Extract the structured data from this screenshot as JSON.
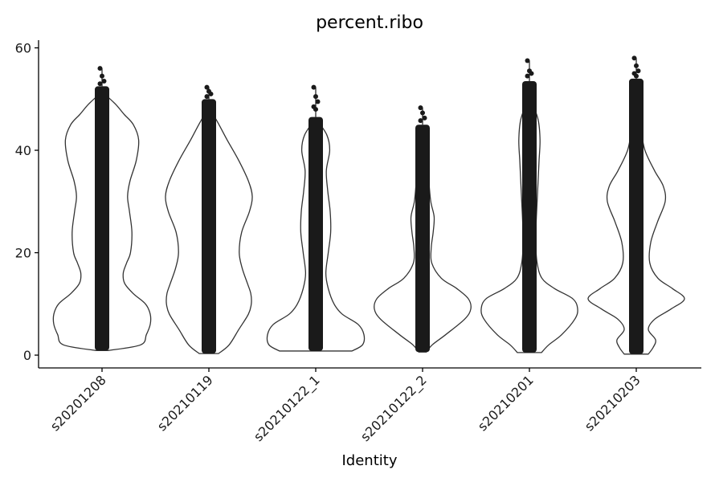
{
  "chart_data": {
    "type": "violin",
    "title": "percent.ribo",
    "xlabel": "Identity",
    "ylabel": "",
    "ylim": [
      -2.5,
      61.5
    ],
    "yticks": [
      0,
      20,
      40,
      60
    ],
    "grid": false,
    "legend": "none",
    "categories": [
      "s20201208",
      "s20210119",
      "s20210122_1",
      "s20210122_2",
      "s20210201",
      "s20210203"
    ],
    "violin_color": "#ffffff",
    "outline_color": "#333333",
    "point_color": "#1a1a1a",
    "violins": [
      {
        "name": "s20201208",
        "min": 0.9,
        "max": 51,
        "density": [
          [
            0.9,
            0.13
          ],
          [
            2,
            0.8
          ],
          [
            4,
            0.92
          ],
          [
            6,
            1.0
          ],
          [
            8,
            1.0
          ],
          [
            10,
            0.9
          ],
          [
            12,
            0.65
          ],
          [
            14,
            0.47
          ],
          [
            16,
            0.44
          ],
          [
            18,
            0.51
          ],
          [
            20,
            0.59
          ],
          [
            24,
            0.62
          ],
          [
            28,
            0.57
          ],
          [
            31,
            0.53
          ],
          [
            34,
            0.58
          ],
          [
            38,
            0.71
          ],
          [
            42,
            0.76
          ],
          [
            45,
            0.65
          ],
          [
            47,
            0.46
          ],
          [
            49,
            0.28
          ],
          [
            51,
            0.05
          ]
        ],
        "points": {
          "y_min": 0.9,
          "y_max": 52.5
        },
        "outliers": [
          56,
          54.5,
          53.5,
          53
        ]
      },
      {
        "name": "s20210119",
        "min": 0.3,
        "max": 48,
        "density": [
          [
            0.3,
            0.2
          ],
          [
            2,
            0.42
          ],
          [
            5,
            0.62
          ],
          [
            8,
            0.82
          ],
          [
            10,
            0.88
          ],
          [
            12,
            0.87
          ],
          [
            14,
            0.8
          ],
          [
            17,
            0.69
          ],
          [
            20,
            0.63
          ],
          [
            24,
            0.68
          ],
          [
            28,
            0.84
          ],
          [
            31,
            0.9
          ],
          [
            34,
            0.82
          ],
          [
            38,
            0.62
          ],
          [
            42,
            0.38
          ],
          [
            45,
            0.21
          ],
          [
            48,
            0.03
          ]
        ],
        "points": {
          "y_min": 0.3,
          "y_max": 50
        },
        "outliers": [
          52.3,
          51.5,
          51,
          50.5
        ]
      },
      {
        "name": "s20210122_1",
        "min": 0.8,
        "max": 46,
        "density": [
          [
            0.8,
            0.75
          ],
          [
            2,
            0.97
          ],
          [
            4,
            1.0
          ],
          [
            6,
            0.88
          ],
          [
            8,
            0.55
          ],
          [
            10,
            0.38
          ],
          [
            13,
            0.26
          ],
          [
            16,
            0.21
          ],
          [
            20,
            0.26
          ],
          [
            24,
            0.31
          ],
          [
            28,
            0.3
          ],
          [
            32,
            0.25
          ],
          [
            36,
            0.22
          ],
          [
            40,
            0.29
          ],
          [
            43,
            0.23
          ],
          [
            46,
            0.02
          ]
        ],
        "points": {
          "y_min": 0.8,
          "y_max": 46.5
        },
        "outliers": [
          52.3,
          50.5,
          49.5,
          48.5,
          48
        ]
      },
      {
        "name": "s20210122_2",
        "min": 0.6,
        "max": 42,
        "density": [
          [
            0.6,
            0.08
          ],
          [
            2,
            0.2
          ],
          [
            4,
            0.48
          ],
          [
            7,
            0.87
          ],
          [
            9,
            1.0
          ],
          [
            11,
            0.95
          ],
          [
            13,
            0.71
          ],
          [
            15,
            0.39
          ],
          [
            18,
            0.19
          ],
          [
            21,
            0.18
          ],
          [
            24,
            0.22
          ],
          [
            27,
            0.24
          ],
          [
            30,
            0.17
          ],
          [
            34,
            0.13
          ],
          [
            38,
            0.1
          ],
          [
            42,
            0.02
          ]
        ],
        "points": {
          "y_min": 0.6,
          "y_max": 45
        },
        "outliers": [
          48.3,
          47.3,
          46.3,
          45.8
        ]
      },
      {
        "name": "s20210201",
        "min": 0.5,
        "max": 50,
        "density": [
          [
            0.5,
            0.25
          ],
          [
            2,
            0.4
          ],
          [
            4,
            0.67
          ],
          [
            7,
            0.94
          ],
          [
            9,
            1.0
          ],
          [
            11,
            0.9
          ],
          [
            13,
            0.52
          ],
          [
            15,
            0.26
          ],
          [
            18,
            0.16
          ],
          [
            22,
            0.13
          ],
          [
            26,
            0.14
          ],
          [
            30,
            0.16
          ],
          [
            34,
            0.18
          ],
          [
            38,
            0.2
          ],
          [
            42,
            0.22
          ],
          [
            46,
            0.18
          ],
          [
            50,
            0.03
          ]
        ],
        "points": {
          "y_min": 0.5,
          "y_max": 53.5
        },
        "outliers": [
          57.5,
          55.5,
          55,
          54.5
        ]
      },
      {
        "name": "s20210203",
        "min": 0.2,
        "max": 50,
        "density": [
          [
            0.2,
            0.25
          ],
          [
            1.5,
            0.35
          ],
          [
            3,
            0.4
          ],
          [
            5,
            0.25
          ],
          [
            7,
            0.38
          ],
          [
            9,
            0.72
          ],
          [
            11,
            1.0
          ],
          [
            13,
            0.75
          ],
          [
            15,
            0.45
          ],
          [
            18,
            0.28
          ],
          [
            22,
            0.3
          ],
          [
            26,
            0.44
          ],
          [
            30,
            0.6
          ],
          [
            33,
            0.56
          ],
          [
            36,
            0.38
          ],
          [
            40,
            0.18
          ],
          [
            44,
            0.1
          ],
          [
            48,
            0.05
          ],
          [
            50,
            0.02
          ]
        ],
        "points": {
          "y_min": 0.2,
          "y_max": 54
        },
        "outliers": [
          58,
          56.5,
          55.5,
          55,
          54.5
        ]
      }
    ]
  }
}
